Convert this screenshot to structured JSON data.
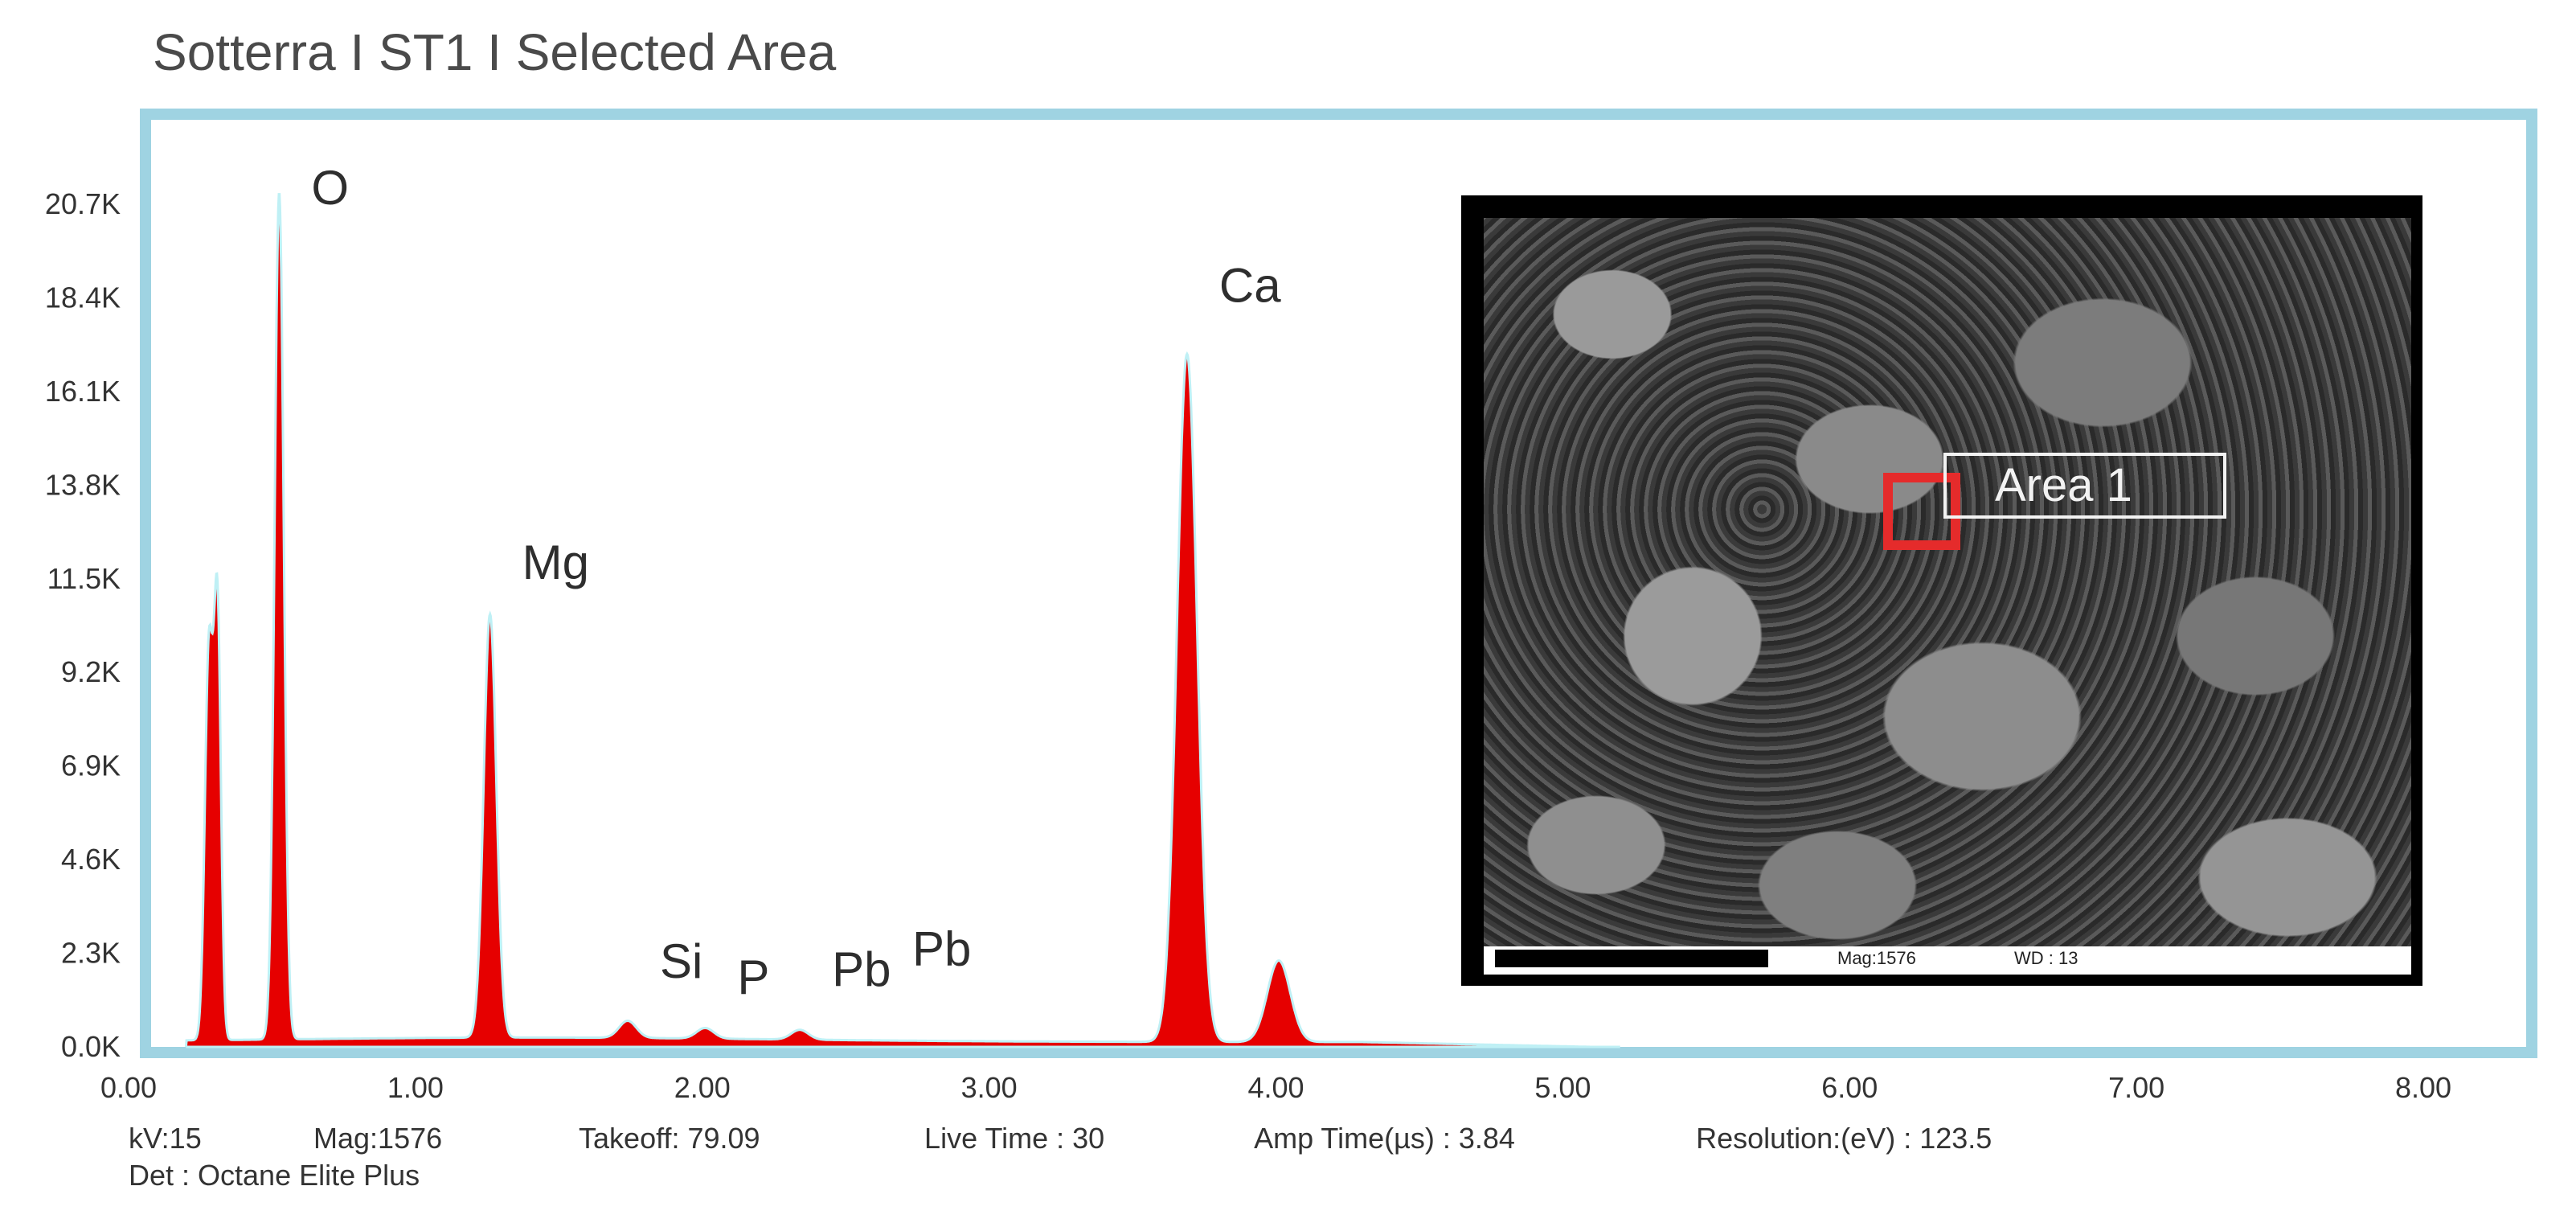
{
  "title": "Sotterra I ST1 I Selected Area",
  "footer": {
    "kv": "kV:15",
    "mag": "Mag:1576",
    "takeoff": "Takeoff: 79.09",
    "live_time": "Live Time : 30",
    "amp_time": "Amp Time(µs) : 3.84",
    "resolution": "Resolution:(eV) : 123.5",
    "detector": "Det : Octane Elite Plus"
  },
  "inset": {
    "area_label": "Area 1",
    "mag": "Mag:1576",
    "wd": "WD : 13"
  },
  "colors": {
    "frame": "#9fd3e2",
    "spectrum_fill": "#e60000",
    "spectrum_edge": "#bff0f5",
    "area_box": "#e52b2b"
  },
  "chart_data": {
    "type": "area",
    "xlim": [
      0,
      8
    ],
    "ylim": [
      0,
      20700
    ],
    "x_ticks": [
      "0.00",
      "1.00",
      "2.00",
      "3.00",
      "4.00",
      "5.00",
      "6.00",
      "7.00",
      "8.00"
    ],
    "y_ticks": [
      "0.0K",
      "2.3K",
      "4.6K",
      "6.9K",
      "9.2K",
      "11.5K",
      "13.8K",
      "16.1K",
      "18.4K",
      "20.7K"
    ],
    "peaks": [
      {
        "x": 0.28,
        "y": 9600,
        "w": 0.014
      },
      {
        "x": 0.31,
        "y": 10300,
        "w": 0.012
      },
      {
        "x": 0.525,
        "y": 20800,
        "w": 0.016
      },
      {
        "x": 1.26,
        "y": 10400,
        "w": 0.022
      },
      {
        "x": 1.74,
        "y": 420,
        "w": 0.03
      },
      {
        "x": 2.01,
        "y": 260,
        "w": 0.03
      },
      {
        "x": 2.34,
        "y": 240,
        "w": 0.03
      },
      {
        "x": 3.69,
        "y": 16900,
        "w": 0.035
      },
      {
        "x": 4.01,
        "y": 2000,
        "w": 0.04
      }
    ],
    "peak_labels": [
      {
        "text": "O",
        "x": 0.525,
        "y": 20700
      },
      {
        "text": "Mg",
        "x": 1.26,
        "y": 11500
      },
      {
        "text": "Si",
        "x": 1.74,
        "y": 1700
      },
      {
        "text": "P",
        "x": 2.01,
        "y": 1300
      },
      {
        "text": "Pb",
        "x": 2.34,
        "y": 1500
      },
      {
        "text": "Pb",
        "x": 2.62,
        "y": 2000
      },
      {
        "text": "Ca",
        "x": 3.69,
        "y": 18300
      }
    ]
  }
}
